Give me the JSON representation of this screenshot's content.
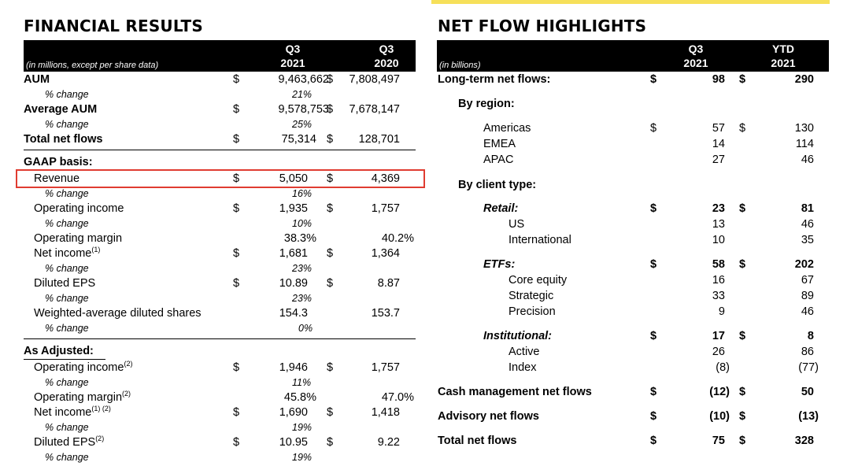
{
  "colors": {
    "highlight": "#e03c31",
    "gold_bar": "#f6e05a",
    "header_bg": "#000000"
  },
  "financial": {
    "title": "FINANCIAL RESULTS",
    "units_note": "(in millions, except per share data)",
    "col1_line1": "Q3",
    "col1_line2": "2021",
    "col2_line1": "Q3",
    "col2_line2": "2020",
    "rows": {
      "aum": {
        "label": "AUM",
        "d1": "$",
        "v1": "9,463,662",
        "d2": "$",
        "v2": "7,808,497"
      },
      "aum_pct": {
        "label": "% change",
        "v": "21%"
      },
      "avg_aum": {
        "label": "Average AUM",
        "d1": "$",
        "v1": "9,578,753",
        "d2": "$",
        "v2": "7,678,147"
      },
      "avg_aum_pct": {
        "label": "% change",
        "v": "25%"
      },
      "total_net_flows": {
        "label": "Total net flows",
        "d1": "$",
        "v1": "75,314",
        "d2": "$",
        "v2": "128,701"
      },
      "gaap_basis": {
        "label": "GAAP basis:"
      },
      "revenue": {
        "label": "Revenue",
        "d1": "$",
        "v1": "5,050",
        "d2": "$",
        "v2": "4,369"
      },
      "revenue_pct": {
        "label": "% change",
        "v": "16%"
      },
      "op_income": {
        "label": "Operating income",
        "d1": "$",
        "v1": "1,935",
        "d2": "$",
        "v2": "1,757"
      },
      "op_income_pct": {
        "label": "% change",
        "v": "10%"
      },
      "op_margin": {
        "label": "Operating margin",
        "v1": "38.3%",
        "v2": "40.2%"
      },
      "net_income": {
        "label": "Net income",
        "sup": "(1)",
        "d1": "$",
        "v1": "1,681",
        "d2": "$",
        "v2": "1,364"
      },
      "net_income_pct": {
        "label": "% change",
        "v": "23%"
      },
      "eps": {
        "label": "Diluted EPS",
        "d1": "$",
        "v1": "10.89",
        "d2": "$",
        "v2": "8.87"
      },
      "eps_pct": {
        "label": "% change",
        "v": "23%"
      },
      "shares": {
        "label": "Weighted-average diluted shares",
        "v1": "154.3",
        "v2": "153.7"
      },
      "shares_pct": {
        "label": "% change",
        "v": "0%"
      },
      "as_adjusted": {
        "label": "As Adjusted:"
      },
      "adj_op_income": {
        "label": "Operating income",
        "sup": "(2)",
        "d1": "$",
        "v1": "1,946",
        "d2": "$",
        "v2": "1,757"
      },
      "adj_op_income_pct": {
        "label": "% change",
        "v": "11%"
      },
      "adj_op_margin": {
        "label": "Operating margin",
        "sup": "(2)",
        "v1": "45.8%",
        "v2": "47.0%"
      },
      "adj_net_income": {
        "label": "Net income",
        "sup": "(1) (2)",
        "d1": "$",
        "v1": "1,690",
        "d2": "$",
        "v2": "1,418"
      },
      "adj_net_income_pct": {
        "label": "% change",
        "v": "19%"
      },
      "adj_eps": {
        "label": "Diluted EPS",
        "sup": "(2)",
        "d1": "$",
        "v1": "10.95",
        "d2": "$",
        "v2": "9.22"
      },
      "adj_eps_pct": {
        "label": "% change",
        "v": "19%"
      }
    }
  },
  "netflow": {
    "title": "NET FLOW HIGHLIGHTS",
    "units_note": "(in billions)",
    "col1_line1": "Q3",
    "col1_line2": "2021",
    "col2_line1": "YTD",
    "col2_line2": "2021",
    "rows": {
      "lt": {
        "label": "Long-term net flows:",
        "d1": "$",
        "v1": "98",
        "d2": "$",
        "v2": "290"
      },
      "by_region": {
        "label": "By region:"
      },
      "americas": {
        "label": "Americas",
        "d1": "$",
        "v1": "57",
        "d2": "$",
        "v2": "130"
      },
      "emea": {
        "label": "EMEA",
        "v1": "14",
        "v2": "114"
      },
      "apac": {
        "label": "APAC",
        "v1": "27",
        "v2": "46"
      },
      "by_client": {
        "label": "By client type:"
      },
      "retail": {
        "label": "Retail:",
        "d1": "$",
        "v1": "23",
        "d2": "$",
        "v2": "81"
      },
      "us": {
        "label": "US",
        "v1": "13",
        "v2": "46"
      },
      "intl": {
        "label": "International",
        "v1": "10",
        "v2": "35"
      },
      "etfs": {
        "label": "ETFs:",
        "d1": "$",
        "v1": "58",
        "d2": "$",
        "v2": "202"
      },
      "core": {
        "label": "Core equity",
        "v1": "16",
        "v2": "67"
      },
      "strategic": {
        "label": "Strategic",
        "v1": "33",
        "v2": "89"
      },
      "precision": {
        "label": "Precision",
        "v1": "9",
        "v2": "46"
      },
      "inst": {
        "label": "Institutional:",
        "d1": "$",
        "v1": "17",
        "d2": "$",
        "v2": "8"
      },
      "active": {
        "label": "Active",
        "v1": "26",
        "v2": "86"
      },
      "index": {
        "label": "Index",
        "v1": "(8)",
        "v2": "(77)"
      },
      "cash": {
        "label": "Cash management net flows",
        "d1": "$",
        "v1": "(12)",
        "d2": "$",
        "v2": "50"
      },
      "advisory": {
        "label": "Advisory net flows",
        "d1": "$",
        "v1": "(10)",
        "d2": "$",
        "v2": "(13)"
      },
      "total": {
        "label": "Total net flows",
        "d1": "$",
        "v1": "75",
        "d2": "$",
        "v2": "328"
      }
    }
  }
}
